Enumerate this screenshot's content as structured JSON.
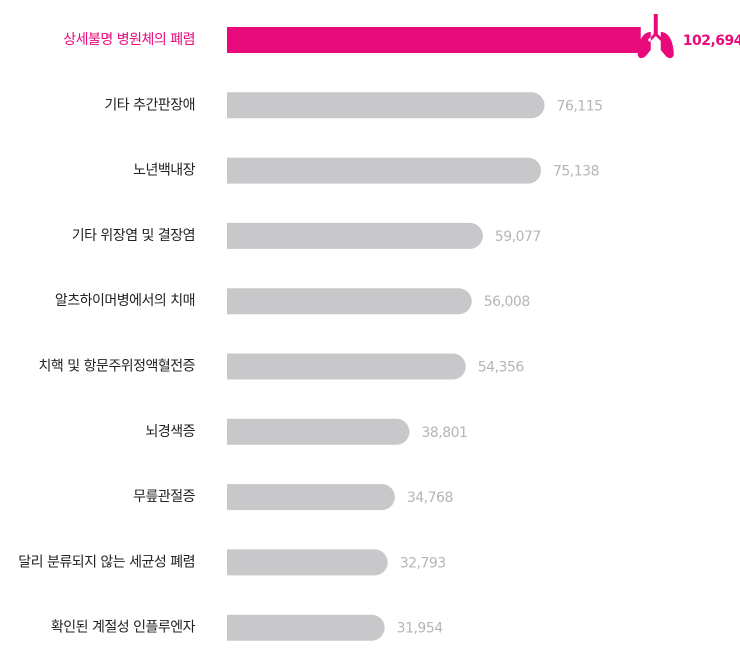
{
  "chart_data": {
    "type": "bar",
    "orientation": "horizontal",
    "categories": [
      "상세불명 병원체의 폐렴",
      "기타 추간판장애",
      "노년백내장",
      "기타 위장염 및 결장염",
      "알츠하이머병에서의 치매",
      "치핵 및 항문주위정액혈전증",
      "뇌경색증",
      "무릎관절증",
      "달리 분류되지 않는 세균성 폐렴",
      "확인된 계절성 인플루엔자"
    ],
    "values": [
      102694,
      76115,
      75138,
      59077,
      56008,
      54356,
      38801,
      34768,
      32793,
      31954
    ],
    "value_labels": [
      "102,694",
      "76,115",
      "75,138",
      "59,077",
      "56,008",
      "54,356",
      "38,801",
      "34,768",
      "32,793",
      "31,954"
    ],
    "color": "#c8c8ca",
    "highlight_color": "#e8097a",
    "highlight_index": 0
  }
}
